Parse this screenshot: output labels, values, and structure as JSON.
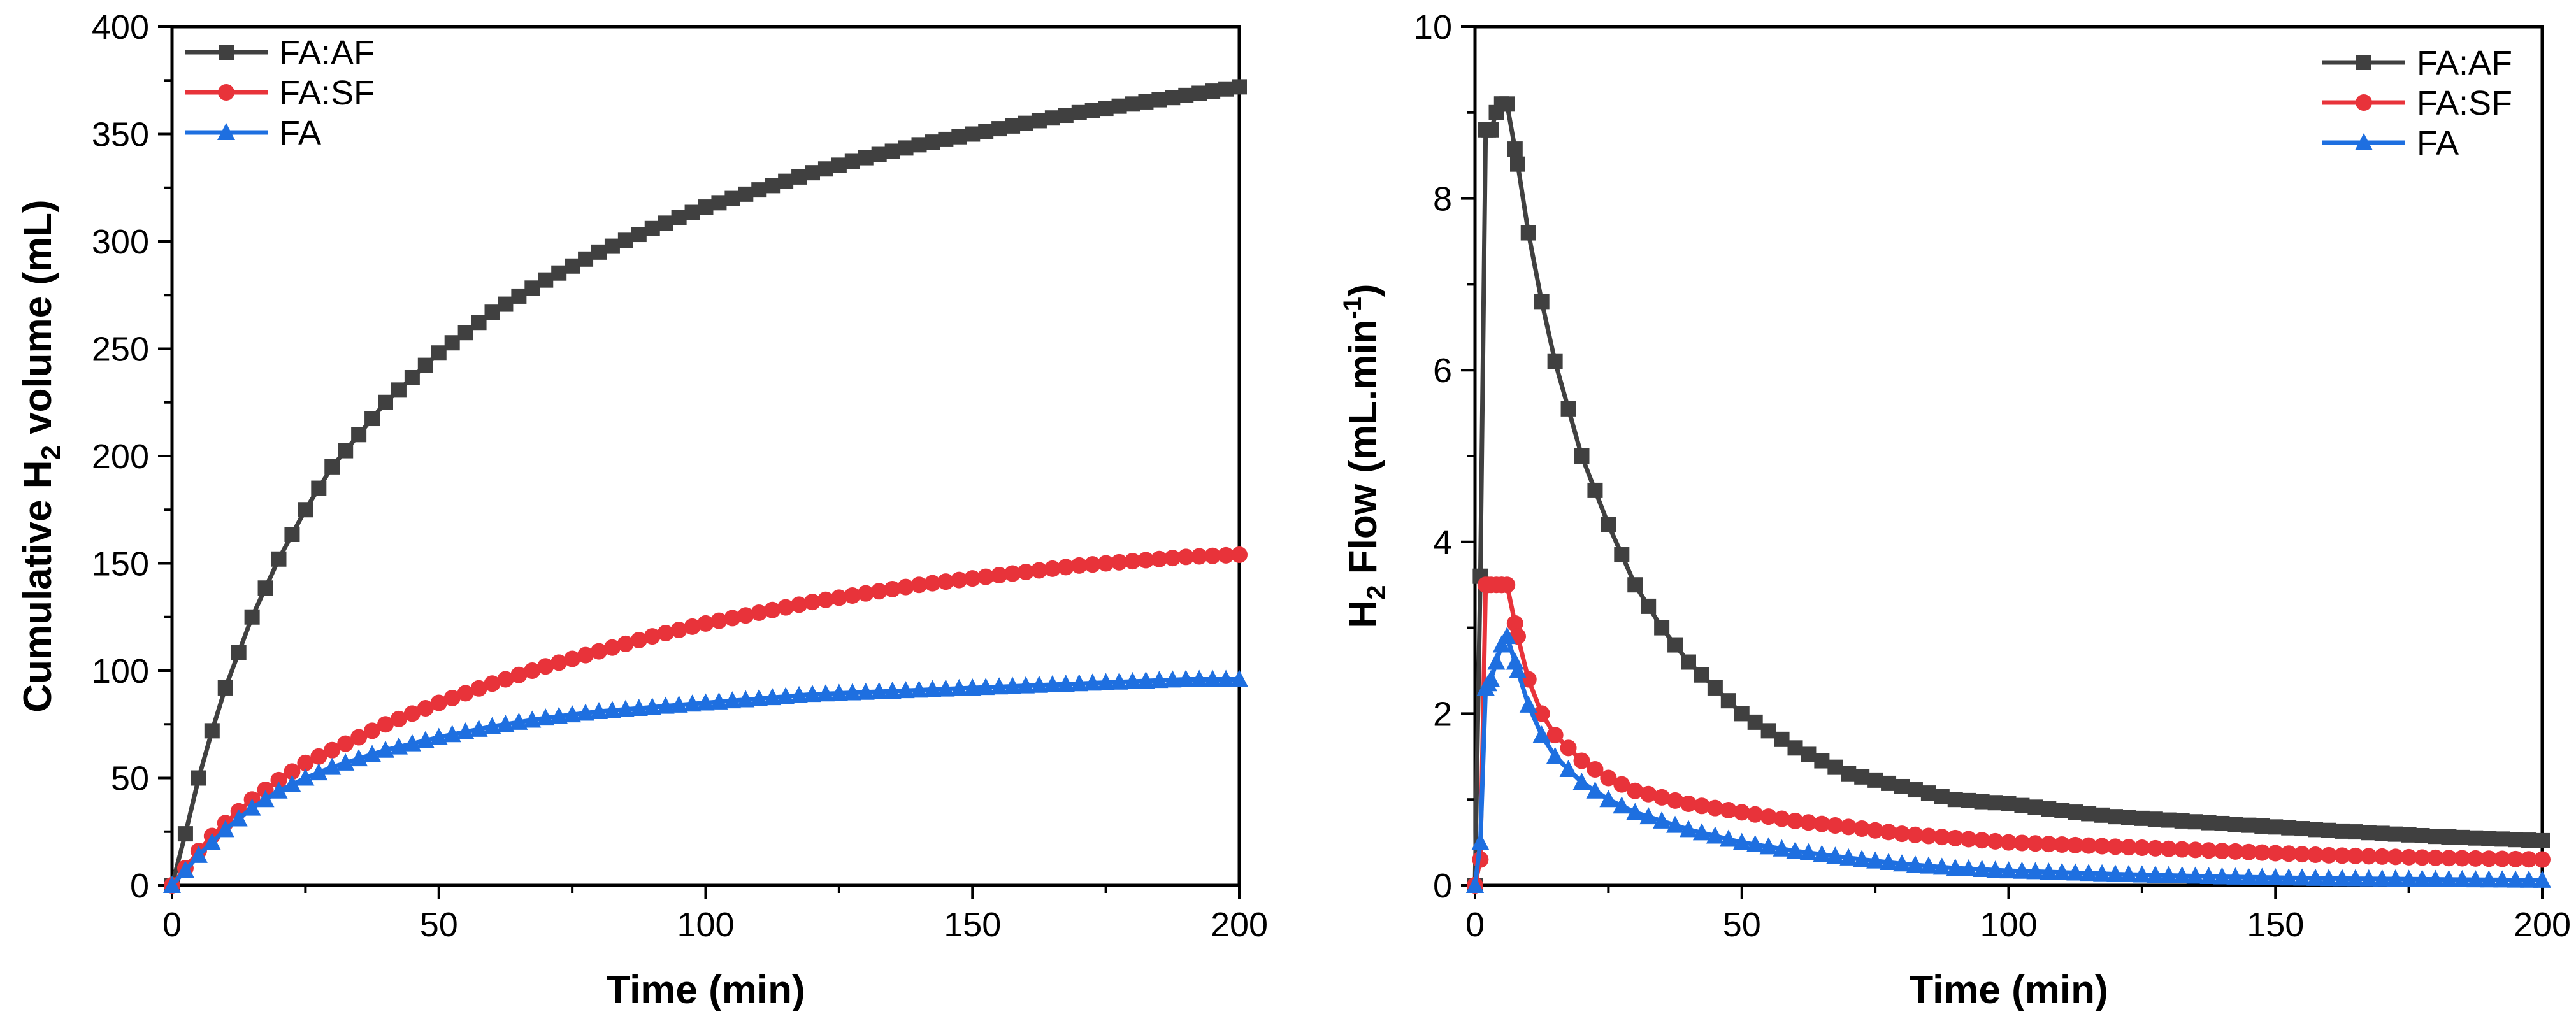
{
  "chart_data": [
    {
      "type": "line",
      "title": "",
      "xlabel": "Time (min)",
      "ylabel_parts": [
        "Cumulative H",
        "2",
        " volume (mL)"
      ],
      "xlim": [
        0,
        200
      ],
      "ylim": [
        0,
        400
      ],
      "xticks": [
        0,
        50,
        100,
        150,
        200
      ],
      "yticks": [
        0,
        50,
        100,
        150,
        200,
        250,
        300,
        350,
        400
      ],
      "x_tick_labels": [
        "0",
        "50",
        "100",
        "150",
        "200"
      ],
      "y_tick_labels": [
        "0",
        "50",
        "100",
        "150",
        "200",
        "250",
        "300",
        "350",
        "400"
      ],
      "legend_position": "top-left",
      "series": [
        {
          "name": "FA:AF",
          "color": "#404040",
          "marker": "square",
          "x": [
            0,
            2.5,
            5,
            7.5,
            10,
            15,
            20,
            25,
            30,
            40,
            50,
            60,
            70,
            80,
            90,
            100,
            110,
            120,
            130,
            140,
            150,
            160,
            170,
            180,
            190,
            200
          ],
          "y": [
            0,
            24,
            50,
            72,
            92,
            125,
            152,
            175,
            195,
            225,
            248,
            267,
            282,
            295,
            306,
            316,
            324,
            332,
            339,
            345,
            350,
            355,
            360,
            364,
            368,
            372
          ]
        },
        {
          "name": "FA:SF",
          "color": "#e8333a",
          "marker": "circle",
          "x": [
            0,
            2.5,
            5,
            7.5,
            10,
            15,
            20,
            25,
            30,
            40,
            50,
            60,
            70,
            80,
            90,
            100,
            110,
            120,
            130,
            140,
            150,
            160,
            170,
            180,
            190,
            200
          ],
          "y": [
            0,
            8,
            16,
            23,
            29,
            40,
            49,
            57,
            63,
            75,
            85,
            94,
            102,
            109,
            116,
            122,
            127,
            132,
            136,
            140,
            143,
            146,
            149,
            151,
            153,
            154
          ]
        },
        {
          "name": "FA",
          "color": "#1e6fe0",
          "marker": "triangle",
          "x": [
            0,
            2.5,
            5,
            7.5,
            10,
            15,
            20,
            25,
            30,
            40,
            50,
            60,
            70,
            80,
            90,
            100,
            110,
            120,
            130,
            140,
            150,
            160,
            170,
            180,
            190,
            200
          ],
          "y": [
            0,
            7,
            14,
            20,
            26,
            36,
            44,
            50,
            55,
            63,
            69,
            74,
            78,
            81,
            83,
            85,
            87,
            89,
            90,
            91,
            92,
            93,
            94,
            95,
            96,
            96
          ]
        }
      ]
    },
    {
      "type": "line",
      "title": "",
      "xlabel": "Time (min)",
      "ylabel_parts": [
        "H",
        "2",
        " Flow (mL.min",
        "-1",
        ")"
      ],
      "xlim": [
        0,
        200
      ],
      "ylim": [
        0,
        10
      ],
      "xticks": [
        0,
        50,
        100,
        150,
        200
      ],
      "yticks": [
        0,
        2,
        4,
        6,
        8,
        10
      ],
      "x_tick_labels": [
        "0",
        "50",
        "100",
        "150",
        "200"
      ],
      "y_tick_labels": [
        "0",
        "2",
        "4",
        "6",
        "8",
        "10"
      ],
      "legend_position": "top-right",
      "series": [
        {
          "name": "FA:AF",
          "color": "#404040",
          "marker": "square",
          "x": [
            0,
            1,
            2,
            3,
            4,
            5,
            6,
            8,
            10,
            12.5,
            15,
            20,
            25,
            30,
            35,
            40,
            50,
            60,
            70,
            80,
            90,
            100,
            110,
            120,
            140,
            160,
            180,
            200
          ],
          "y": [
            0,
            3.6,
            8.8,
            8.8,
            9.0,
            9.1,
            9.1,
            8.4,
            7.6,
            6.8,
            6.1,
            5.0,
            4.2,
            3.5,
            3.0,
            2.6,
            2.0,
            1.6,
            1.3,
            1.15,
            1.0,
            0.95,
            0.87,
            0.8,
            0.72,
            0.64,
            0.57,
            0.52
          ]
        },
        {
          "name": "FA:SF",
          "color": "#e8333a",
          "marker": "circle",
          "x": [
            0,
            1,
            2,
            3,
            4,
            5,
            6,
            8,
            10,
            12.5,
            15,
            20,
            25,
            30,
            40,
            50,
            60,
            70,
            80,
            90,
            100,
            120,
            140,
            160,
            180,
            200
          ],
          "y": [
            0,
            0.3,
            3.5,
            3.5,
            3.5,
            3.5,
            3.5,
            2.9,
            2.4,
            2.0,
            1.75,
            1.45,
            1.25,
            1.1,
            0.95,
            0.85,
            0.75,
            0.68,
            0.6,
            0.55,
            0.5,
            0.45,
            0.4,
            0.35,
            0.32,
            0.3
          ]
        },
        {
          "name": "FA",
          "color": "#1e6fe0",
          "marker": "triangle",
          "x": [
            0,
            1,
            2,
            3,
            4,
            5,
            6,
            8,
            10,
            12.5,
            15,
            20,
            25,
            30,
            40,
            50,
            60,
            70,
            80,
            90,
            100,
            120,
            140,
            160,
            180,
            200
          ],
          "y": [
            0,
            0.5,
            2.3,
            2.4,
            2.6,
            2.8,
            2.9,
            2.5,
            2.1,
            1.75,
            1.5,
            1.2,
            1.0,
            0.85,
            0.65,
            0.5,
            0.4,
            0.32,
            0.25,
            0.2,
            0.17,
            0.13,
            0.1,
            0.08,
            0.07,
            0.06
          ]
        }
      ]
    }
  ]
}
